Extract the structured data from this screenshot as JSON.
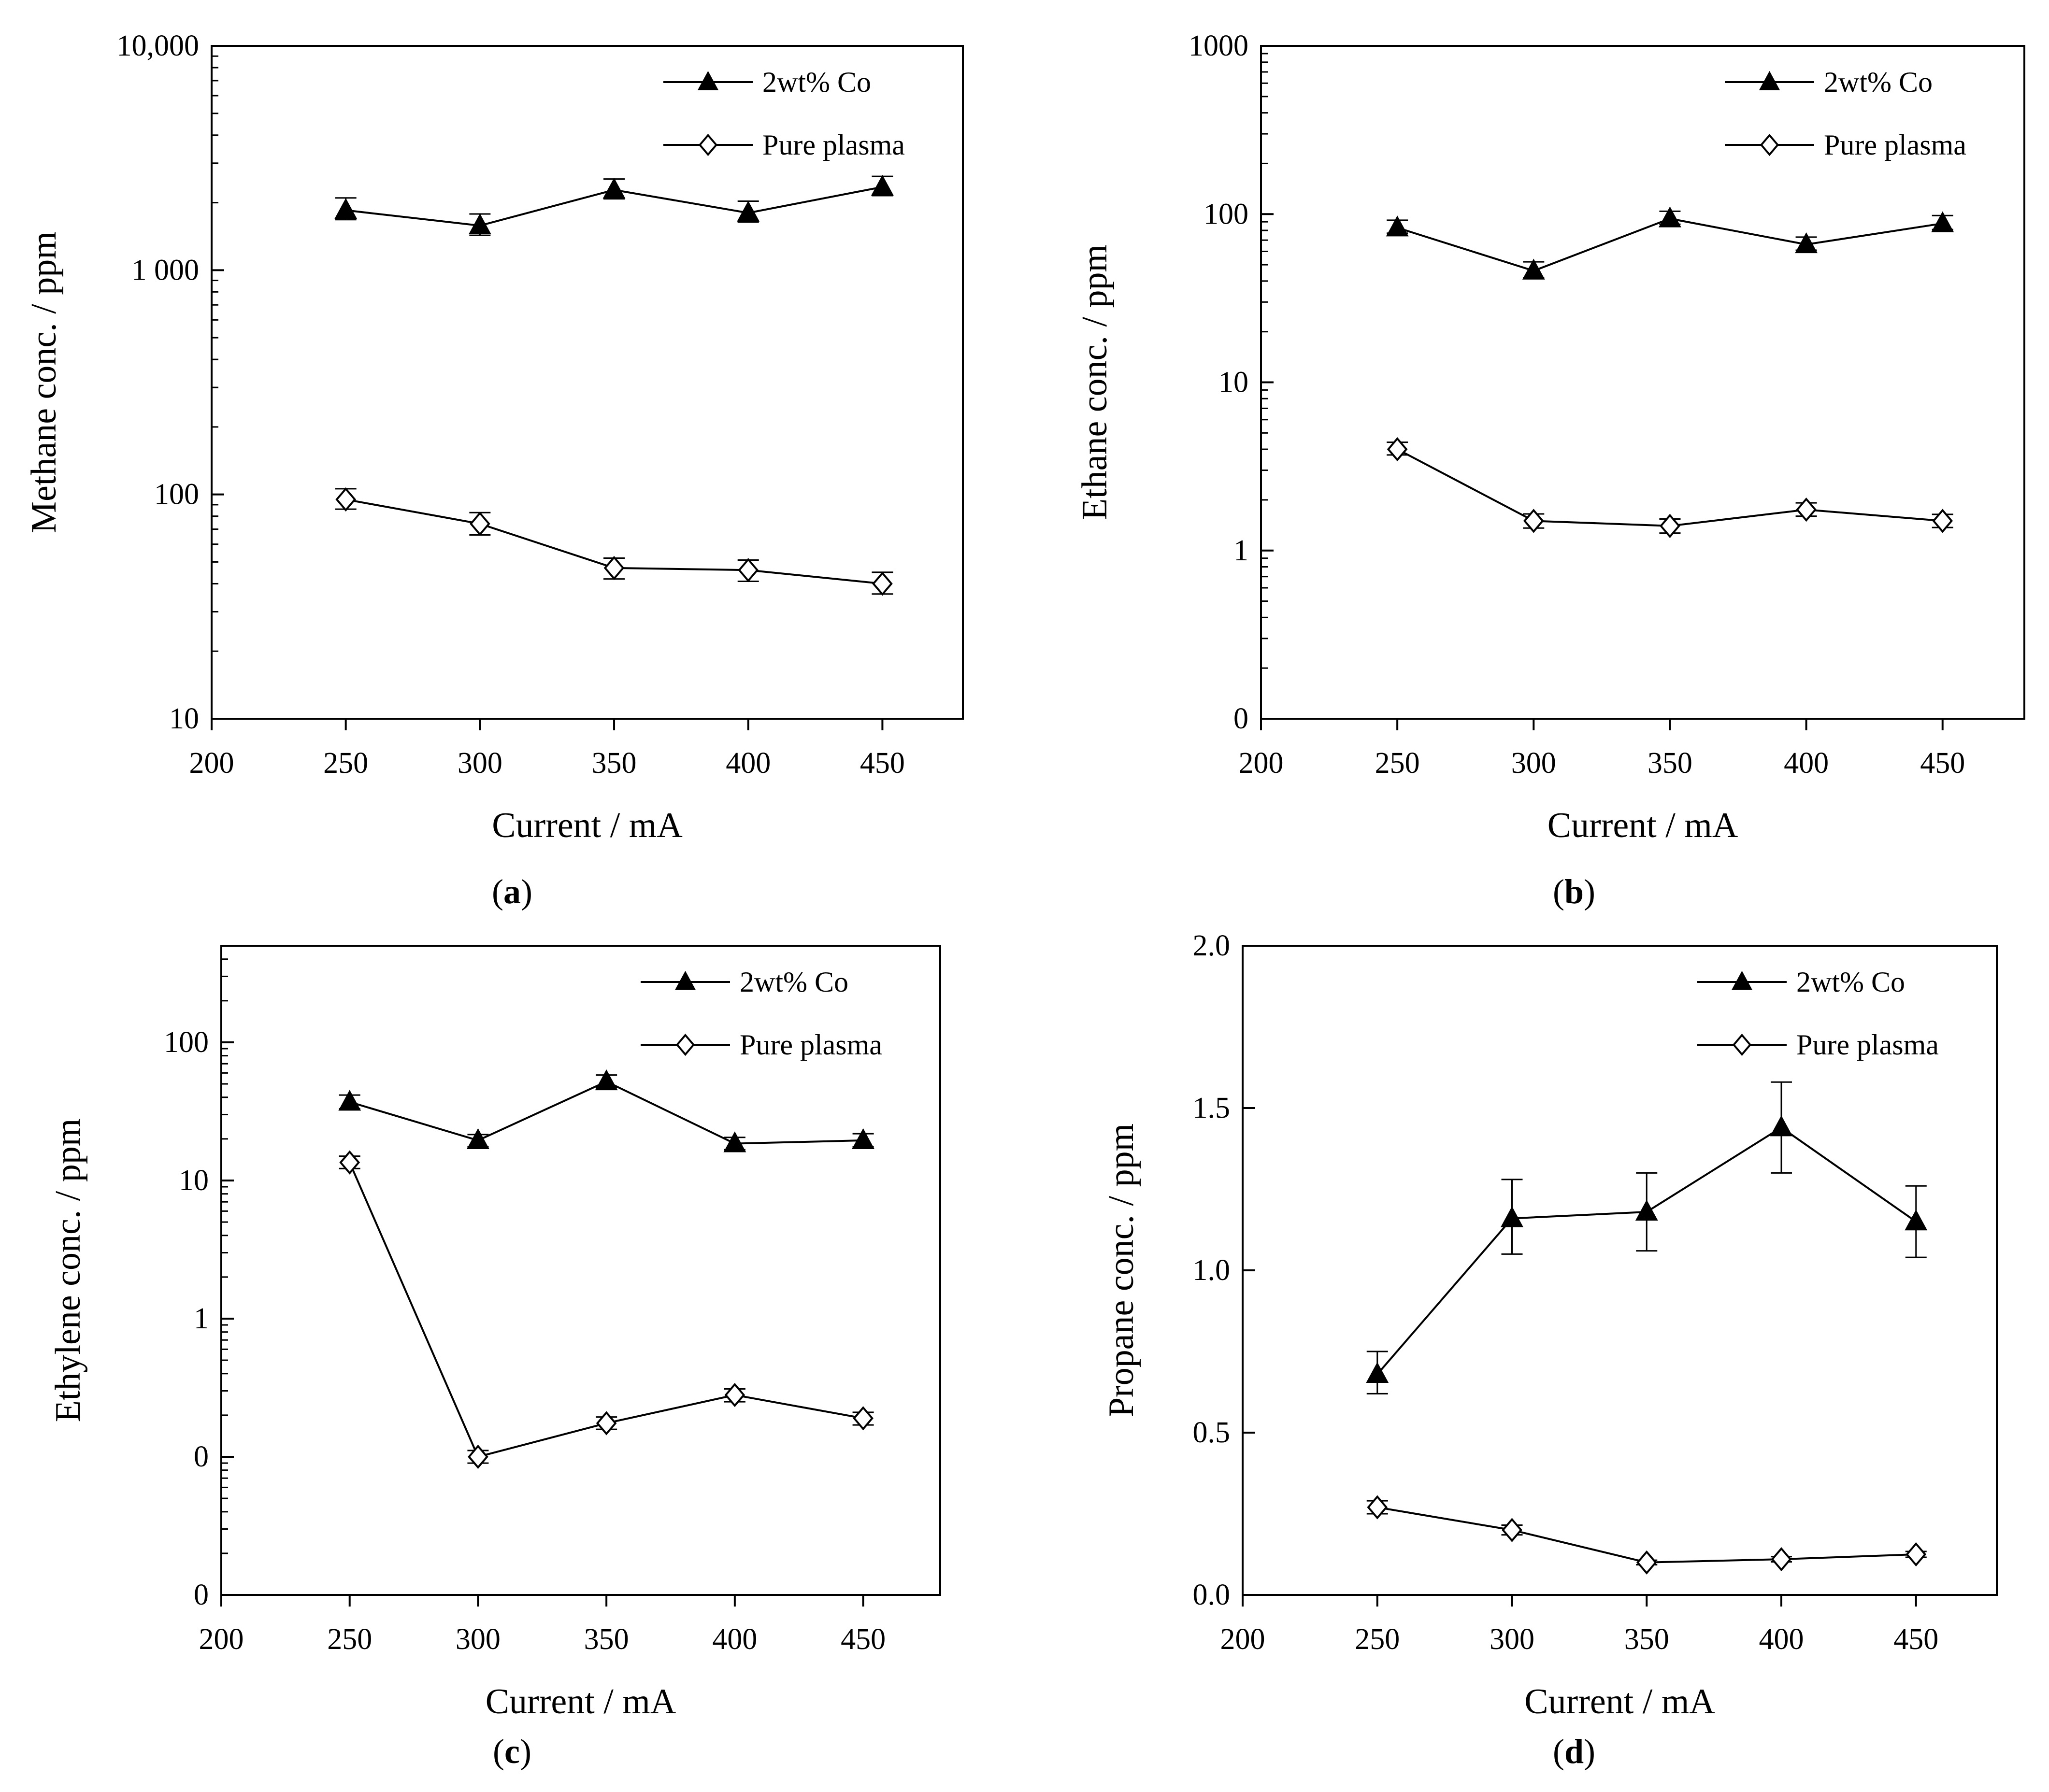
{
  "colors": {
    "axis": "#000000",
    "background": "#ffffff",
    "filled_marker": "#000000",
    "open_marker": "#ffffff"
  },
  "chart_data": [
    {
      "panel": "(a)",
      "panel_letter": "a",
      "type": "line",
      "yscale": "log",
      "xlabel": "Current / mA",
      "ylabel": "Methane conc. / ppm",
      "xlim": [
        200,
        480
      ],
      "ylim": [
        10,
        10000
      ],
      "xticks": [
        200,
        250,
        300,
        350,
        400,
        450
      ],
      "xtick_labels": [
        "200",
        "250",
        "300",
        "350",
        "400",
        "450"
      ],
      "yticks": [
        10,
        100,
        1000,
        10000
      ],
      "ytick_labels": [
        "10",
        "100",
        "1 000",
        "10,000"
      ],
      "legend_position": "top-right",
      "series": [
        {
          "name": "2wt% Co",
          "marker": "filled-triangle",
          "x": [
            250,
            300,
            350,
            400,
            450
          ],
          "y": [
            1850,
            1580,
            2280,
            1800,
            2350
          ],
          "err_lo": [
            1680,
            1430,
            2080,
            1640,
            2150
          ],
          "err_hi": [
            2100,
            1780,
            2550,
            2030,
            2620
          ]
        },
        {
          "name": "Pure plasma",
          "marker": "open-diamond",
          "x": [
            250,
            300,
            350,
            400,
            450
          ],
          "y": [
            95,
            74,
            47,
            46,
            40
          ],
          "err_lo": [
            86,
            66,
            42,
            41,
            36
          ],
          "err_hi": [
            106,
            83,
            52,
            51,
            45
          ]
        }
      ]
    },
    {
      "panel": "(b)",
      "panel_letter": "b",
      "type": "line",
      "yscale": "log",
      "xlabel": "Current / mA",
      "ylabel": "Ethane conc. / ppm",
      "xlim": [
        200,
        480
      ],
      "ylim": [
        0.1,
        1000
      ],
      "xticks": [
        200,
        250,
        300,
        350,
        400,
        450
      ],
      "xtick_labels": [
        "200",
        "250",
        "300",
        "350",
        "400",
        "450"
      ],
      "yticks": [
        0.1,
        1,
        10,
        100,
        1000
      ],
      "ytick_labels": [
        "0",
        "1",
        "10",
        "100",
        "1000"
      ],
      "legend_position": "top-right",
      "series": [
        {
          "name": "2wt% Co",
          "marker": "filled-triangle",
          "x": [
            250,
            300,
            350,
            400,
            450
          ],
          "y": [
            83,
            46,
            94,
            66,
            88
          ],
          "err_lo": [
            77,
            42,
            87,
            61,
            81
          ],
          "err_hi": [
            92,
            52,
            104,
            73,
            98
          ]
        },
        {
          "name": "Pure plasma",
          "marker": "open-diamond",
          "x": [
            250,
            300,
            350,
            400,
            450
          ],
          "y": [
            4.0,
            1.5,
            1.4,
            1.75,
            1.5
          ],
          "err_lo": [
            3.7,
            1.36,
            1.27,
            1.6,
            1.37
          ],
          "err_hi": [
            4.4,
            1.65,
            1.54,
            1.92,
            1.64
          ]
        }
      ]
    },
    {
      "panel": "(c)",
      "panel_letter": "c",
      "type": "line",
      "yscale": "log",
      "xlabel": "Current / mA",
      "ylabel": "Ethylene conc. / ppm",
      "xlim": [
        200,
        480
      ],
      "ylim": [
        0.01,
        500
      ],
      "xticks": [
        200,
        250,
        300,
        350,
        400,
        450
      ],
      "xtick_labels": [
        "200",
        "250",
        "300",
        "350",
        "400",
        "450"
      ],
      "yticks": [
        0.01,
        0.1,
        1,
        10,
        100
      ],
      "ytick_labels": [
        "0",
        "0",
        "1",
        "10",
        "100"
      ],
      "legend_position": "top-right",
      "series": [
        {
          "name": "2wt% Co",
          "marker": "filled-triangle",
          "x": [
            250,
            300,
            350,
            400,
            450
          ],
          "y": [
            37,
            19.5,
            52,
            18.5,
            19.5
          ],
          "err_lo": [
            33,
            17.5,
            47,
            16.7,
            17.5
          ],
          "err_hi": [
            41.5,
            21.5,
            58,
            20.5,
            21.8
          ]
        },
        {
          "name": "Pure plasma",
          "marker": "open-diamond",
          "x": [
            250,
            300,
            350,
            400,
            450
          ],
          "y": [
            13.5,
            0.1,
            0.175,
            0.28,
            0.19
          ],
          "err_lo": [
            12.2,
            0.09,
            0.158,
            0.25,
            0.17
          ],
          "err_hi": [
            15,
            0.111,
            0.194,
            0.31,
            0.21
          ]
        }
      ]
    },
    {
      "panel": "(d)",
      "panel_letter": "d",
      "type": "line",
      "yscale": "linear",
      "xlabel": "Current / mA",
      "ylabel": "Propane conc. / ppm",
      "xlim": [
        200,
        480
      ],
      "ylim": [
        0,
        2.0
      ],
      "xticks": [
        200,
        250,
        300,
        350,
        400,
        450
      ],
      "xtick_labels": [
        "200",
        "250",
        "300",
        "350",
        "400",
        "450"
      ],
      "yticks": [
        0,
        0.5,
        1.0,
        1.5,
        2.0
      ],
      "ytick_labels": [
        "0.0",
        "0.5",
        "1.0",
        "1.5",
        "2.0"
      ],
      "legend_position": "top-right",
      "series": [
        {
          "name": "2wt% Co",
          "marker": "filled-triangle",
          "x": [
            250,
            300,
            350,
            400,
            450
          ],
          "y": [
            0.68,
            1.16,
            1.18,
            1.44,
            1.15
          ],
          "err_lo": [
            0.62,
            1.05,
            1.06,
            1.3,
            1.04
          ],
          "err_hi": [
            0.75,
            1.28,
            1.3,
            1.58,
            1.26
          ]
        },
        {
          "name": "Pure plasma",
          "marker": "open-diamond",
          "x": [
            250,
            300,
            350,
            400,
            450
          ],
          "y": [
            0.27,
            0.2,
            0.1,
            0.11,
            0.125
          ],
          "err_lo": [
            0.25,
            0.185,
            0.093,
            0.102,
            0.116
          ],
          "err_hi": [
            0.29,
            0.215,
            0.107,
            0.118,
            0.134
          ]
        }
      ]
    }
  ]
}
